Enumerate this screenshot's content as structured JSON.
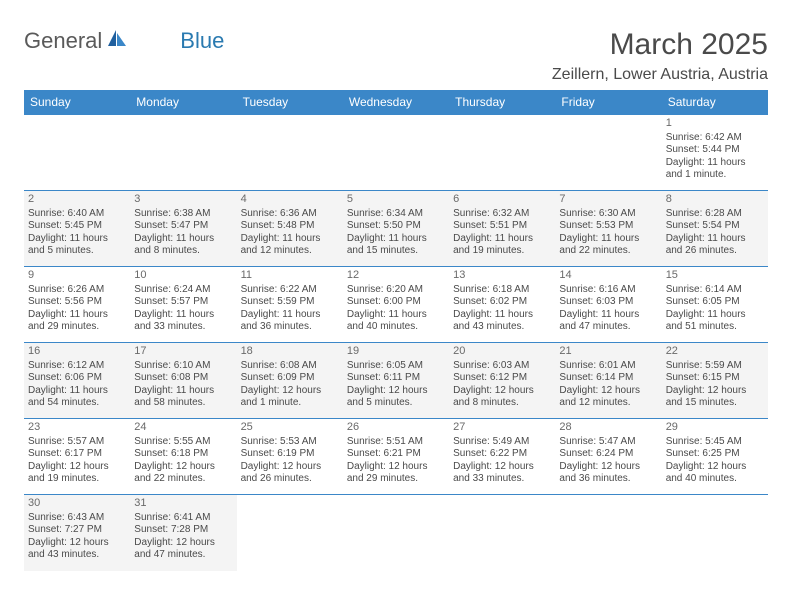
{
  "brand": {
    "general": "General",
    "blue": "Blue"
  },
  "title": "March 2025",
  "location": "Zeillern, Lower Austria, Austria",
  "colors": {
    "header_bg": "#3b87c8",
    "header_text": "#ffffff",
    "border": "#3b87c8",
    "text": "#4a4a4a",
    "alt_row_bg": "#f4f4f4"
  },
  "day_headers": [
    "Sunday",
    "Monday",
    "Tuesday",
    "Wednesday",
    "Thursday",
    "Friday",
    "Saturday"
  ],
  "weeks": [
    [
      null,
      null,
      null,
      null,
      null,
      null,
      {
        "n": "1",
        "sunrise": "Sunrise: 6:42 AM",
        "sunset": "Sunset: 5:44 PM",
        "day1": "Daylight: 11 hours",
        "day2": "and 1 minute."
      }
    ],
    [
      {
        "n": "2",
        "sunrise": "Sunrise: 6:40 AM",
        "sunset": "Sunset: 5:45 PM",
        "day1": "Daylight: 11 hours",
        "day2": "and 5 minutes."
      },
      {
        "n": "3",
        "sunrise": "Sunrise: 6:38 AM",
        "sunset": "Sunset: 5:47 PM",
        "day1": "Daylight: 11 hours",
        "day2": "and 8 minutes."
      },
      {
        "n": "4",
        "sunrise": "Sunrise: 6:36 AM",
        "sunset": "Sunset: 5:48 PM",
        "day1": "Daylight: 11 hours",
        "day2": "and 12 minutes."
      },
      {
        "n": "5",
        "sunrise": "Sunrise: 6:34 AM",
        "sunset": "Sunset: 5:50 PM",
        "day1": "Daylight: 11 hours",
        "day2": "and 15 minutes."
      },
      {
        "n": "6",
        "sunrise": "Sunrise: 6:32 AM",
        "sunset": "Sunset: 5:51 PM",
        "day1": "Daylight: 11 hours",
        "day2": "and 19 minutes."
      },
      {
        "n": "7",
        "sunrise": "Sunrise: 6:30 AM",
        "sunset": "Sunset: 5:53 PM",
        "day1": "Daylight: 11 hours",
        "day2": "and 22 minutes."
      },
      {
        "n": "8",
        "sunrise": "Sunrise: 6:28 AM",
        "sunset": "Sunset: 5:54 PM",
        "day1": "Daylight: 11 hours",
        "day2": "and 26 minutes."
      }
    ],
    [
      {
        "n": "9",
        "sunrise": "Sunrise: 6:26 AM",
        "sunset": "Sunset: 5:56 PM",
        "day1": "Daylight: 11 hours",
        "day2": "and 29 minutes."
      },
      {
        "n": "10",
        "sunrise": "Sunrise: 6:24 AM",
        "sunset": "Sunset: 5:57 PM",
        "day1": "Daylight: 11 hours",
        "day2": "and 33 minutes."
      },
      {
        "n": "11",
        "sunrise": "Sunrise: 6:22 AM",
        "sunset": "Sunset: 5:59 PM",
        "day1": "Daylight: 11 hours",
        "day2": "and 36 minutes."
      },
      {
        "n": "12",
        "sunrise": "Sunrise: 6:20 AM",
        "sunset": "Sunset: 6:00 PM",
        "day1": "Daylight: 11 hours",
        "day2": "and 40 minutes."
      },
      {
        "n": "13",
        "sunrise": "Sunrise: 6:18 AM",
        "sunset": "Sunset: 6:02 PM",
        "day1": "Daylight: 11 hours",
        "day2": "and 43 minutes."
      },
      {
        "n": "14",
        "sunrise": "Sunrise: 6:16 AM",
        "sunset": "Sunset: 6:03 PM",
        "day1": "Daylight: 11 hours",
        "day2": "and 47 minutes."
      },
      {
        "n": "15",
        "sunrise": "Sunrise: 6:14 AM",
        "sunset": "Sunset: 6:05 PM",
        "day1": "Daylight: 11 hours",
        "day2": "and 51 minutes."
      }
    ],
    [
      {
        "n": "16",
        "sunrise": "Sunrise: 6:12 AM",
        "sunset": "Sunset: 6:06 PM",
        "day1": "Daylight: 11 hours",
        "day2": "and 54 minutes."
      },
      {
        "n": "17",
        "sunrise": "Sunrise: 6:10 AM",
        "sunset": "Sunset: 6:08 PM",
        "day1": "Daylight: 11 hours",
        "day2": "and 58 minutes."
      },
      {
        "n": "18",
        "sunrise": "Sunrise: 6:08 AM",
        "sunset": "Sunset: 6:09 PM",
        "day1": "Daylight: 12 hours",
        "day2": "and 1 minute."
      },
      {
        "n": "19",
        "sunrise": "Sunrise: 6:05 AM",
        "sunset": "Sunset: 6:11 PM",
        "day1": "Daylight: 12 hours",
        "day2": "and 5 minutes."
      },
      {
        "n": "20",
        "sunrise": "Sunrise: 6:03 AM",
        "sunset": "Sunset: 6:12 PM",
        "day1": "Daylight: 12 hours",
        "day2": "and 8 minutes."
      },
      {
        "n": "21",
        "sunrise": "Sunrise: 6:01 AM",
        "sunset": "Sunset: 6:14 PM",
        "day1": "Daylight: 12 hours",
        "day2": "and 12 minutes."
      },
      {
        "n": "22",
        "sunrise": "Sunrise: 5:59 AM",
        "sunset": "Sunset: 6:15 PM",
        "day1": "Daylight: 12 hours",
        "day2": "and 15 minutes."
      }
    ],
    [
      {
        "n": "23",
        "sunrise": "Sunrise: 5:57 AM",
        "sunset": "Sunset: 6:17 PM",
        "day1": "Daylight: 12 hours",
        "day2": "and 19 minutes."
      },
      {
        "n": "24",
        "sunrise": "Sunrise: 5:55 AM",
        "sunset": "Sunset: 6:18 PM",
        "day1": "Daylight: 12 hours",
        "day2": "and 22 minutes."
      },
      {
        "n": "25",
        "sunrise": "Sunrise: 5:53 AM",
        "sunset": "Sunset: 6:19 PM",
        "day1": "Daylight: 12 hours",
        "day2": "and 26 minutes."
      },
      {
        "n": "26",
        "sunrise": "Sunrise: 5:51 AM",
        "sunset": "Sunset: 6:21 PM",
        "day1": "Daylight: 12 hours",
        "day2": "and 29 minutes."
      },
      {
        "n": "27",
        "sunrise": "Sunrise: 5:49 AM",
        "sunset": "Sunset: 6:22 PM",
        "day1": "Daylight: 12 hours",
        "day2": "and 33 minutes."
      },
      {
        "n": "28",
        "sunrise": "Sunrise: 5:47 AM",
        "sunset": "Sunset: 6:24 PM",
        "day1": "Daylight: 12 hours",
        "day2": "and 36 minutes."
      },
      {
        "n": "29",
        "sunrise": "Sunrise: 5:45 AM",
        "sunset": "Sunset: 6:25 PM",
        "day1": "Daylight: 12 hours",
        "day2": "and 40 minutes."
      }
    ],
    [
      {
        "n": "30",
        "sunrise": "Sunrise: 6:43 AM",
        "sunset": "Sunset: 7:27 PM",
        "day1": "Daylight: 12 hours",
        "day2": "and 43 minutes."
      },
      {
        "n": "31",
        "sunrise": "Sunrise: 6:41 AM",
        "sunset": "Sunset: 7:28 PM",
        "day1": "Daylight: 12 hours",
        "day2": "and 47 minutes."
      },
      null,
      null,
      null,
      null,
      null
    ]
  ]
}
